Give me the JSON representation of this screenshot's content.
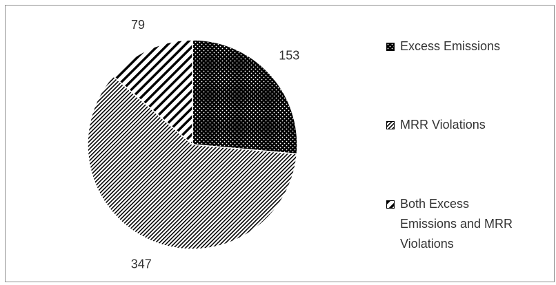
{
  "chart_data": {
    "type": "pie",
    "categories": [
      "Excess Emissions",
      "MRR Violations",
      "Both Excess Emissions and MRR Violations"
    ],
    "values": [
      153,
      347,
      79
    ]
  }
}
